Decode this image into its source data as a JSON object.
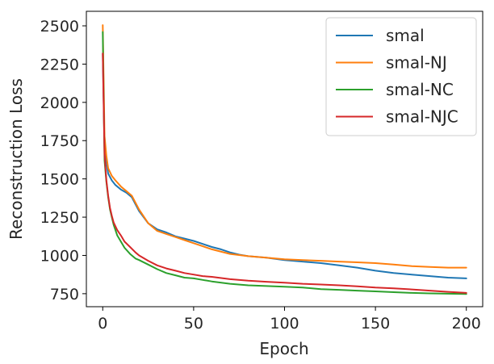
{
  "chart_data": {
    "type": "line",
    "title": "",
    "xlabel": "Epoch",
    "ylabel": "Reconstruction Loss",
    "xlim": [
      -9,
      209
    ],
    "ylim": [
      665,
      2595
    ],
    "xticks": [
      0,
      50,
      100,
      150,
      200
    ],
    "yticks": [
      750,
      1000,
      1250,
      1500,
      1750,
      2000,
      2250,
      2500
    ],
    "grid": false,
    "legend_position": "top-right",
    "series": [
      {
        "name": "smal",
        "color": "#1f77b4",
        "x": [
          0,
          1,
          2,
          3,
          5,
          7,
          10,
          13,
          16,
          20,
          25,
          30,
          35,
          40,
          45,
          50,
          55,
          60,
          65,
          70,
          75,
          80,
          90,
          100,
          110,
          120,
          130,
          140,
          150,
          160,
          170,
          180,
          190,
          200
        ],
        "y": [
          2320,
          1700,
          1610,
          1535,
          1490,
          1460,
          1430,
          1410,
          1380,
          1290,
          1210,
          1170,
          1150,
          1125,
          1110,
          1095,
          1075,
          1055,
          1040,
          1020,
          1005,
          995,
          985,
          970,
          960,
          950,
          935,
          920,
          900,
          885,
          875,
          865,
          855,
          850
        ]
      },
      {
        "name": "smal-NJ",
        "color": "#ff7f0e",
        "x": [
          0,
          1,
          2,
          3,
          5,
          7,
          10,
          13,
          16,
          20,
          25,
          30,
          35,
          40,
          45,
          50,
          55,
          60,
          70,
          80,
          90,
          100,
          110,
          120,
          130,
          140,
          150,
          160,
          170,
          180,
          190,
          200
        ],
        "y": [
          2505,
          1780,
          1650,
          1570,
          1520,
          1490,
          1450,
          1420,
          1390,
          1300,
          1210,
          1160,
          1140,
          1120,
          1100,
          1080,
          1060,
          1040,
          1010,
          995,
          985,
          975,
          970,
          965,
          960,
          955,
          950,
          940,
          930,
          925,
          920,
          920
        ]
      },
      {
        "name": "smal-NC",
        "color": "#2ca02c",
        "x": [
          0,
          1,
          2,
          3,
          4,
          5,
          6,
          8,
          10,
          12,
          15,
          18,
          20,
          25,
          30,
          35,
          40,
          45,
          50,
          55,
          60,
          70,
          80,
          90,
          100,
          110,
          120,
          130,
          140,
          150,
          160,
          170,
          180,
          190,
          200
        ],
        "y": [
          2460,
          1620,
          1480,
          1380,
          1300,
          1250,
          1200,
          1130,
          1090,
          1050,
          1010,
          980,
          970,
          940,
          910,
          885,
          870,
          855,
          850,
          840,
          830,
          815,
          805,
          800,
          795,
          790,
          780,
          775,
          770,
          765,
          760,
          755,
          752,
          750,
          748
        ]
      },
      {
        "name": "smal-NJC",
        "color": "#d62728",
        "x": [
          0,
          1,
          2,
          3,
          4,
          5,
          6,
          8,
          10,
          12,
          15,
          18,
          20,
          25,
          30,
          35,
          40,
          45,
          50,
          55,
          60,
          70,
          80,
          90,
          100,
          110,
          120,
          130,
          140,
          150,
          160,
          170,
          180,
          190,
          200
        ],
        "y": [
          2320,
          1660,
          1490,
          1390,
          1310,
          1260,
          1215,
          1165,
          1130,
          1090,
          1055,
          1020,
          1000,
          965,
          935,
          915,
          900,
          885,
          875,
          865,
          860,
          845,
          835,
          828,
          822,
          815,
          810,
          805,
          798,
          790,
          785,
          778,
          770,
          762,
          755
        ]
      }
    ]
  }
}
